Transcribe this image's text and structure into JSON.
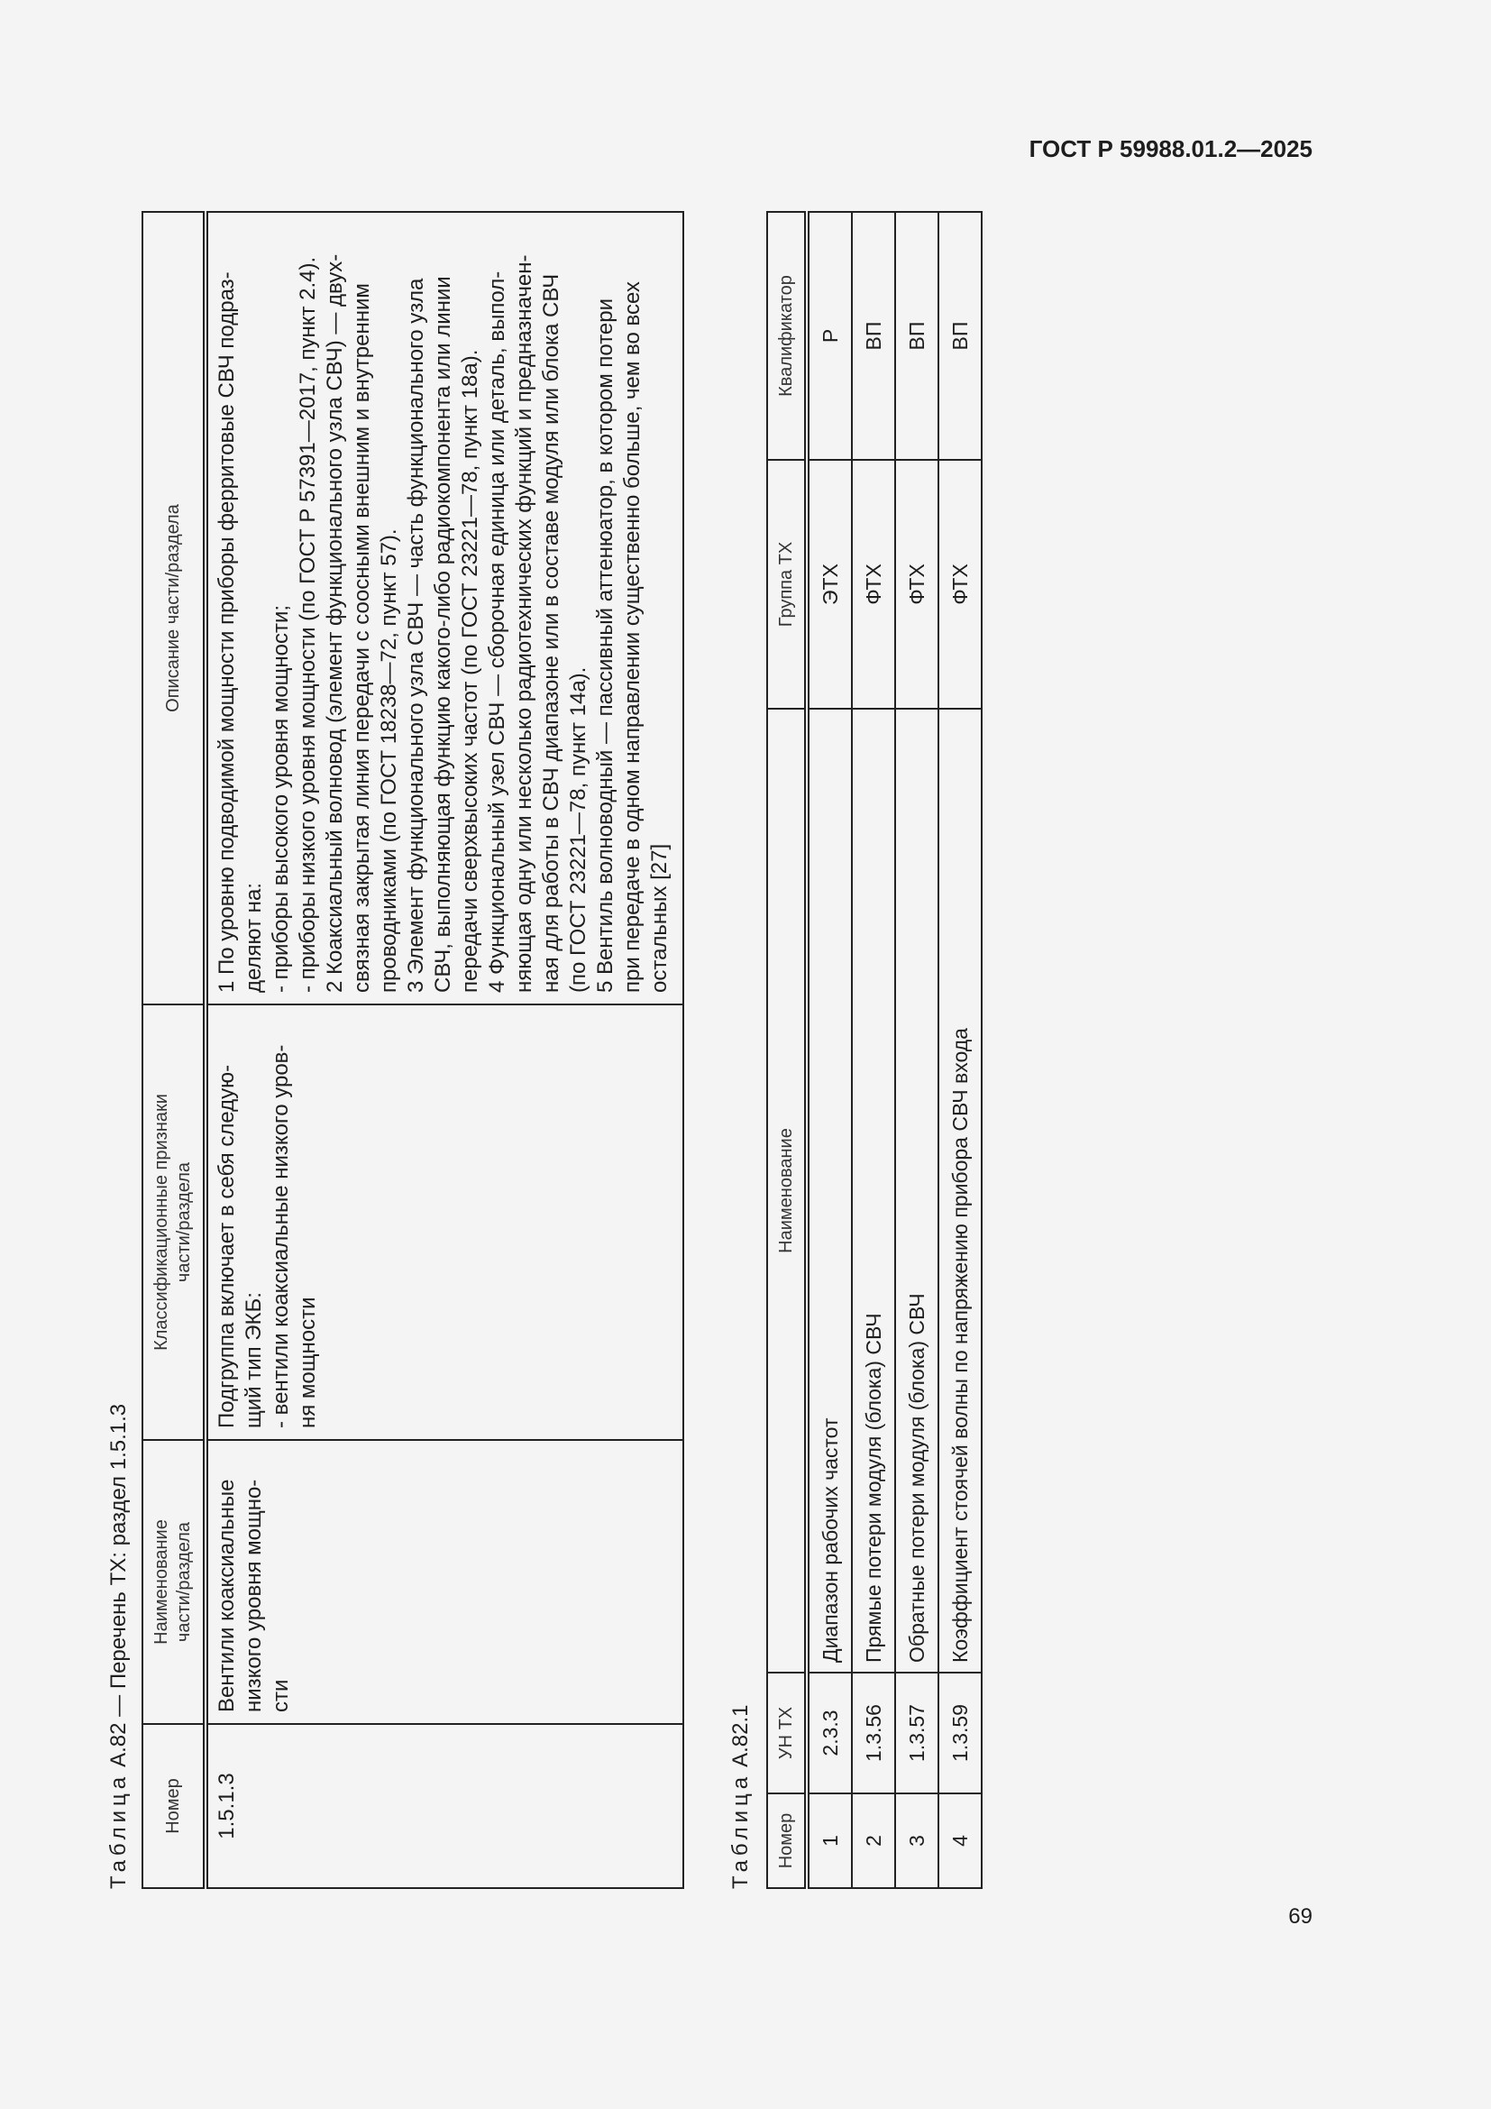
{
  "header": {
    "doc_code": "ГОСТ Р 59988.01.2—2025"
  },
  "footer": {
    "page_number": "69"
  },
  "table_a82": {
    "caption_label": "Таблица",
    "caption_text": "А.82 — Перечень ТХ: раздел 1.5.1.3",
    "columns": [
      "Номер",
      "Наименование\nчасти/раздела",
      "Классификационные признаки\nчасти/раздела",
      "Описание части/раздела"
    ],
    "rows": [
      {
        "number": "1.5.1.3",
        "name": "Вентили коаксиальные\nнизкого уровня мощно-\nсти",
        "classification": "Подгруппа включает в себя следую-\nщий тип ЭКБ:\n- вентили коаксиальные низкого уров-\nня мощности",
        "description": "1 По уровню подводимой мощности приборы ферритовые СВЧ подраз-\nделяют на:\n- приборы высокого уровня мощности;\n- приборы низкого уровня мощности (по ГОСТ Р 57391—2017, пункт 2.4).\n2 Коаксиальный волновод (элемент функционального узла СВЧ) — двух-\nсвязная закрытая линия передачи с соосными внешним и внутренним\nпроводниками (по ГОСТ 18238—72, пункт 57).\n3 Элемент функционального узла СВЧ — часть функционального узла\nСВЧ, выполняющая функцию какого-либо радиокомпонента или линии\nпередачи сверхвысоких частот (по ГОСТ 23221—78, пункт 18а).\n4 Функциональный узел СВЧ — сборочная единица или деталь, выпол-\nняющая одну или несколько радиотехнических функций и предназначен-\nная для работы в СВЧ диапазоне или в составе модуля или блока СВЧ\n(по ГОСТ 23221—78, пункт 14а).\n5 Вентиль волноводный — пассивный аттенюатор, в котором потери\nпри передаче в одном направлении существенно больше, чем во всех\nостальных [27]"
      }
    ]
  },
  "table_a82_1": {
    "caption_label": "Таблица",
    "caption_text": "А.82.1",
    "columns": [
      "Номер",
      "УН ТХ",
      "Наименование",
      "Группа ТХ",
      "Квалификатор"
    ],
    "rows": [
      {
        "number": "1",
        "code": "2.3.3",
        "name": "Диапазон рабочих частот",
        "group": "ЭТХ",
        "qualifier": "Р"
      },
      {
        "number": "2",
        "code": "1.3.56",
        "name": "Прямые потери модуля (блока) СВЧ",
        "group": "ФТХ",
        "qualifier": "ВП"
      },
      {
        "number": "3",
        "code": "1.3.57",
        "name": "Обратные потери модуля (блока) СВЧ",
        "group": "ФТХ",
        "qualifier": "ВП"
      },
      {
        "number": "4",
        "code": "1.3.59",
        "name": "Коэффициент стоячей волны по напряжению прибора СВЧ входа",
        "group": "ФТХ",
        "qualifier": "ВП"
      }
    ]
  }
}
